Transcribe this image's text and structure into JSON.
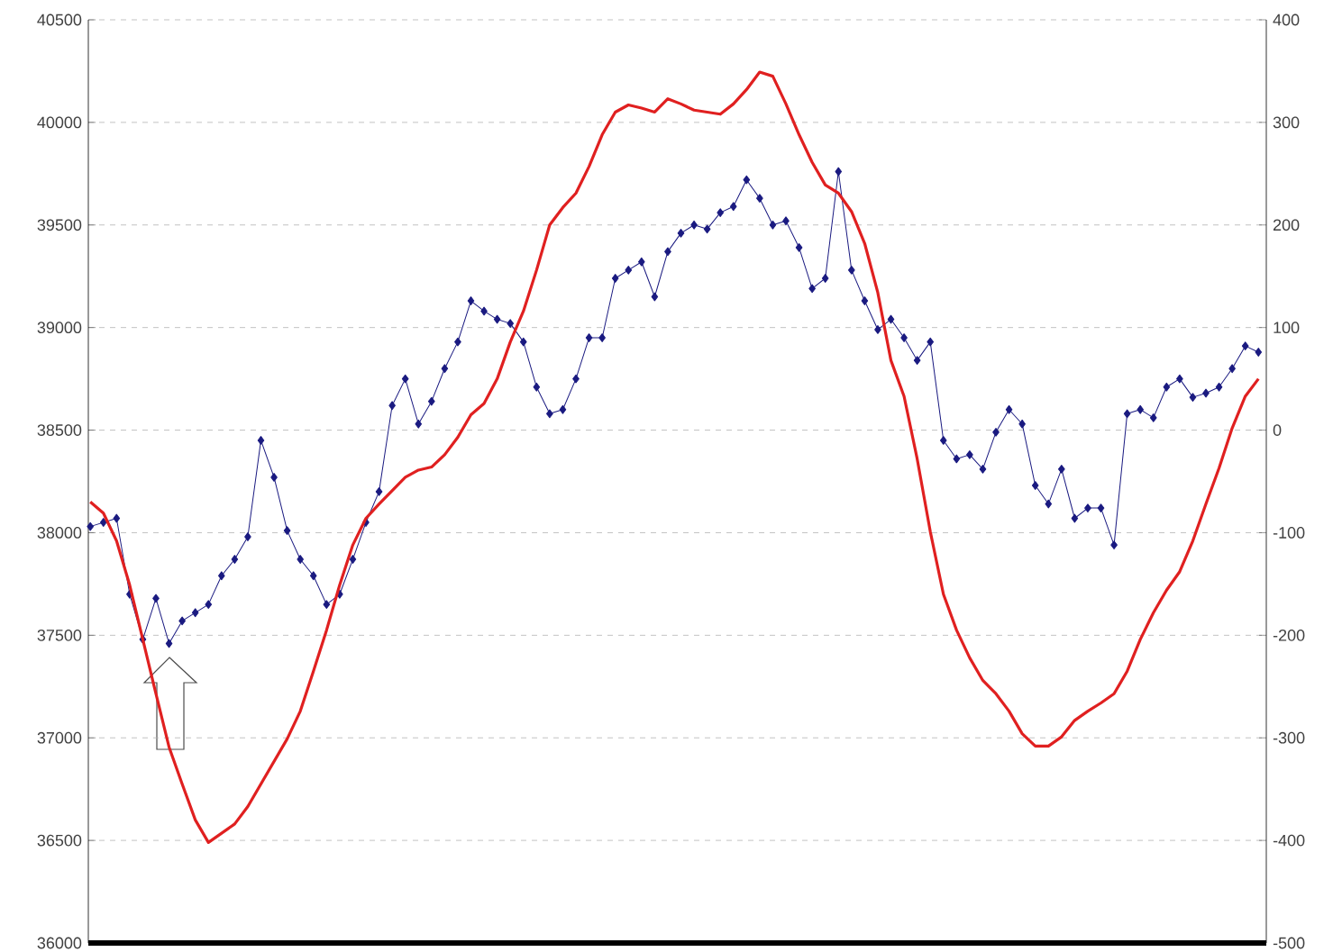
{
  "chart_data": {
    "type": "line",
    "categories": [
      null,
      null,
      null,
      null,
      null,
      null,
      null,
      null,
      null,
      null,
      null,
      null,
      null,
      null,
      null,
      null,
      null,
      null,
      null,
      null,
      null,
      null,
      null,
      null,
      null,
      null,
      null,
      null,
      null,
      null,
      null,
      null,
      null,
      null,
      null,
      null,
      null,
      null,
      null,
      null,
      null,
      null,
      null,
      null,
      null,
      null,
      null,
      null,
      null,
      null,
      null,
      null,
      null,
      null,
      null,
      null,
      null,
      null,
      null,
      null,
      null,
      null,
      null,
      null,
      null,
      null,
      null,
      null,
      null,
      null,
      null,
      null,
      null,
      null,
      null,
      null,
      null,
      null,
      null,
      null,
      null,
      null,
      null,
      null,
      null,
      null,
      null,
      null,
      null,
      null
    ],
    "series": [
      {
        "color": "#1a1a80",
        "marker": "diamond",
        "values": [
          38030,
          38050,
          38070,
          37700,
          37480,
          37680,
          37460,
          37570,
          37610,
          37650,
          37790,
          37870,
          37980,
          38450,
          38270,
          38010,
          37870,
          37790,
          37650,
          37700,
          37870,
          38050,
          38200,
          38620,
          38750,
          38530,
          38640,
          38800,
          38930,
          39130,
          39080,
          39040,
          39020,
          38930,
          38710,
          38580,
          38600,
          38750,
          38950,
          38950,
          39240,
          39280,
          39320,
          39150,
          39370,
          39460,
          39500,
          39480,
          39560,
          39590,
          39720,
          39630,
          39500,
          39520,
          39390,
          39190,
          39240,
          39760,
          39280,
          39130,
          38990,
          39040,
          38950,
          38840,
          38930,
          38450,
          38360,
          38380,
          38310,
          38490,
          38600,
          38530,
          38230,
          38140,
          38310,
          38070,
          38120,
          38120,
          37940,
          38580,
          38600,
          38560,
          38710,
          38750,
          38660,
          38680,
          38710,
          38800,
          38910,
          38880
        ]
      },
      {
        "color": "#e02020",
        "marker": "none",
        "axis": "y2",
        "values": [
          -70,
          -81,
          -108,
          -151,
          -204,
          -257,
          -309,
          -345,
          -380,
          -402,
          -393,
          -384,
          -367,
          -345,
          -323,
          -301,
          -274,
          -235,
          -195,
          -151,
          -112,
          -86,
          -72,
          -59,
          -46,
          -39,
          -36,
          -24,
          -7,
          15,
          26,
          50,
          86,
          116,
          156,
          200,
          217,
          231,
          257,
          288,
          310,
          317,
          314,
          310,
          323,
          318,
          312,
          310,
          308,
          318,
          332,
          349,
          345,
          318,
          288,
          261,
          239,
          231,
          213,
          182,
          134,
          68,
          33,
          -28,
          -99,
          -160,
          -195,
          -222,
          -244,
          -257,
          -274,
          -296,
          -308,
          -308,
          -299,
          -283,
          -274,
          -266,
          -257,
          -235,
          -204,
          -178,
          -156,
          -138,
          -108,
          -72,
          -37,
          2,
          33,
          50
        ]
      }
    ],
    "ylim": [
      36000,
      40500
    ],
    "yticks": [
      36000,
      36500,
      37000,
      37500,
      38000,
      38500,
      39000,
      39500,
      40000,
      40500
    ],
    "y2lim": [
      -500,
      400
    ],
    "y2ticks": [
      -500,
      -400,
      -300,
      -200,
      -100,
      0,
      100,
      200,
      300,
      400
    ],
    "grid": "y"
  }
}
